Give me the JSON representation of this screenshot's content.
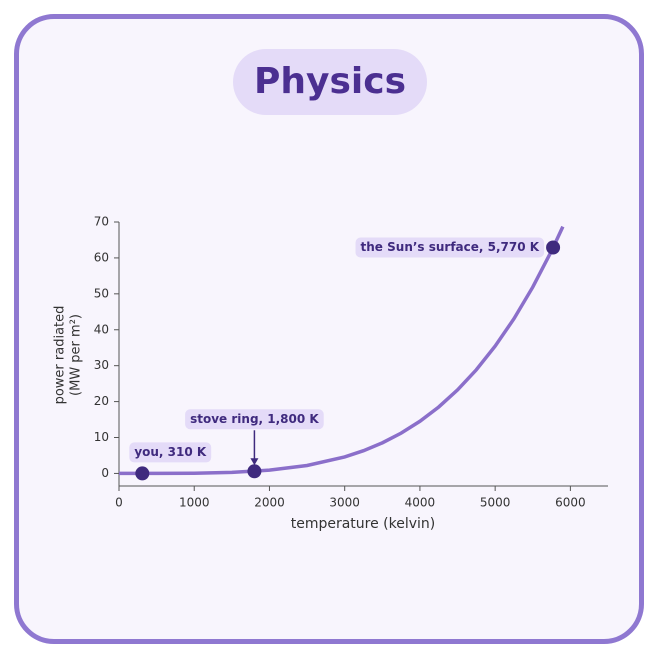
{
  "chart_data": {
    "type": "line",
    "title": "Physics",
    "xlabel": "temperature (kelvin)",
    "ylabel": [
      "power radiated",
      "(MW per m²)"
    ],
    "x": [
      0,
      500,
      1000,
      1500,
      2000,
      2500,
      3000,
      3250,
      3500,
      3750,
      4000,
      4250,
      4500,
      4750,
      5000,
      5250,
      5500,
      5750,
      5900
    ],
    "series": [
      {
        "color": "#8b6fca",
        "values": [
          0,
          0.0035,
          0.057,
          0.287,
          0.907,
          2.21,
          4.59,
          6.33,
          8.51,
          11.21,
          14.52,
          18.5,
          23.25,
          28.86,
          35.44,
          43.07,
          51.88,
          61.98,
          68.7
        ]
      }
    ],
    "annotations": [
      {
        "text": "you, 310 K",
        "x": 310,
        "y": 0.0005
      },
      {
        "text": "stove ring, 1,800 K",
        "x": 1800,
        "y": 0.6
      },
      {
        "text": "the Sun’s surface, 5,770 K",
        "x": 5770,
        "y": 62.9
      }
    ],
    "point_color": "#3f2a7e",
    "xlim": [
      0,
      6500
    ],
    "ylim": [
      -3.5,
      70
    ],
    "xticks": [
      0,
      1000,
      2000,
      3000,
      4000,
      5000,
      6000
    ],
    "yticks": [
      0,
      10,
      20,
      30,
      40,
      50,
      60,
      70
    ]
  }
}
